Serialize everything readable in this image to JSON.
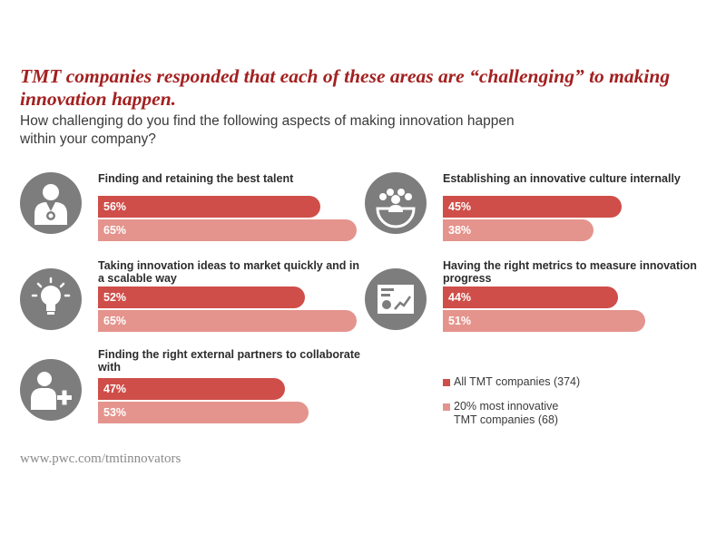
{
  "header": {
    "title": "TMT companies responded that each of these areas are “challenging” to making innovation happen.",
    "subtitle": "How challenging do you find the following aspects of making innovation happen within your company?"
  },
  "colors": {
    "all": "#cf4e49",
    "top": "#e4948d",
    "title": "#a32020",
    "icon_bg": "#7d7d7d"
  },
  "chart_data": {
    "type": "bar",
    "orientation": "horizontal",
    "value_unit": "%",
    "categories": [
      "Finding and retaining the best talent",
      "Taking innovation ideas to market quickly and in a scalable way",
      "Finding the right external partners to collaborate with",
      "Establishing an innovative culture internally",
      "Having the right metrics to measure innovation progress"
    ],
    "series": [
      {
        "name": "All TMT companies (374)",
        "values": [
          56,
          52,
          47,
          45,
          44
        ]
      },
      {
        "name": "20% most innovative TMT companies (68)",
        "values": [
          65,
          65,
          53,
          38,
          51
        ]
      }
    ],
    "ylim": [
      0,
      100
    ],
    "grid": false,
    "legend_position": "bottom-right"
  },
  "items": [
    {
      "label": "Finding and retaining the best talent",
      "icon": "talent-medal-icon",
      "all_label": "56%",
      "top_label": "65%"
    },
    {
      "label": "Taking innovation ideas to market quickly and in a scalable way",
      "icon": "lightbulb-icon",
      "all_label": "52%",
      "top_label": "65%"
    },
    {
      "label": "Finding the right external partners to collaborate with",
      "icon": "add-partner-icon",
      "all_label": "47%",
      "top_label": "53%"
    },
    {
      "label": "Establishing an innovative culture internally",
      "icon": "team-culture-icon",
      "all_label": "45%",
      "top_label": "38%"
    },
    {
      "label": "Having the right metrics to measure innovation progress",
      "icon": "metrics-chart-icon",
      "all_label": "44%",
      "top_label": "51%"
    }
  ],
  "legend": {
    "all": "All TMT companies (374)",
    "top_line1": "20% most innovative",
    "top_line2": "TMT companies (68)"
  },
  "footer": {
    "source": "www.pwc.com/tmtinnovators"
  }
}
